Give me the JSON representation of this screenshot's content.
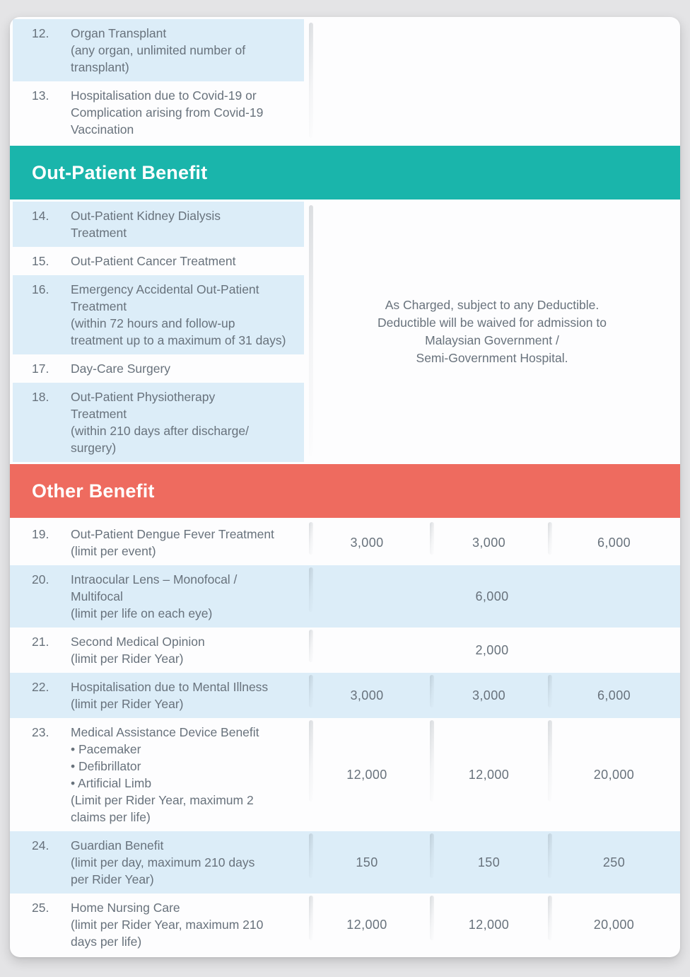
{
  "colors": {
    "teal": "#1ab5ab",
    "coral": "#ee6b5f",
    "row_blue": "#dcedf8",
    "text": "#68727c",
    "page_bg": "#e4e4e6",
    "card_bg": "#fdfdfe"
  },
  "top_rows": [
    {
      "num": "12.",
      "desc": "Organ Transplant\n(any organ, unlimited number of\ntransplant)"
    },
    {
      "num": "13.",
      "desc": "Hospitalisation due to Covid-19 or\nComplication arising from Covid-19\nVaccination"
    }
  ],
  "outpatient": {
    "header": "Out-Patient Benefit",
    "rows": [
      {
        "num": "14.",
        "desc": "Out-Patient Kidney Dialysis\nTreatment"
      },
      {
        "num": "15.",
        "desc": "Out-Patient Cancer Treatment"
      },
      {
        "num": "16.",
        "desc": "Emergency Accidental Out-Patient\nTreatment\n(within 72 hours and follow-up\ntreatment up to a maximum of 31 days)"
      },
      {
        "num": "17.",
        "desc": "Day-Care Surgery"
      },
      {
        "num": "18.",
        "desc": "Out-Patient Physiotherapy\nTreatment\n(within 210 days after discharge/\nsurgery)"
      }
    ],
    "note": "As Charged, subject to any Deductible.\nDeductible will be waived for admission to\nMalaysian Government /\nSemi-Government Hospital."
  },
  "other": {
    "header": "Other Benefit",
    "rows": [
      {
        "num": "19.",
        "desc": "Out-Patient Dengue Fever Treatment\n(limit per event)",
        "values": [
          "3,000",
          "3,000",
          "6,000"
        ]
      },
      {
        "num": "20.",
        "desc": "Intraocular Lens – Monofocal /\nMultifocal\n(limit per life on each eye)",
        "merged": "6,000"
      },
      {
        "num": "21.",
        "desc": "Second Medical Opinion\n(limit per Rider Year)",
        "merged": "2,000"
      },
      {
        "num": "22.",
        "desc": "Hospitalisation due to Mental Illness\n(limit per Rider Year)",
        "values": [
          "3,000",
          "3,000",
          "6,000"
        ]
      },
      {
        "num": "23.",
        "desc": "Medical Assistance Device Benefit\n• Pacemaker\n• Defibrillator\n• Artificial Limb\n(Limit per Rider Year, maximum 2\nclaims per life)",
        "values": [
          "12,000",
          "12,000",
          "20,000"
        ]
      },
      {
        "num": "24.",
        "desc": "Guardian Benefit\n(limit per day, maximum 210 days\nper Rider Year)",
        "values": [
          "150",
          "150",
          "250"
        ]
      },
      {
        "num": "25.",
        "desc": "Home Nursing Care\n(limit per Rider Year, maximum 210\ndays per life)",
        "values": [
          "12,000",
          "12,000",
          "20,000"
        ]
      }
    ]
  }
}
